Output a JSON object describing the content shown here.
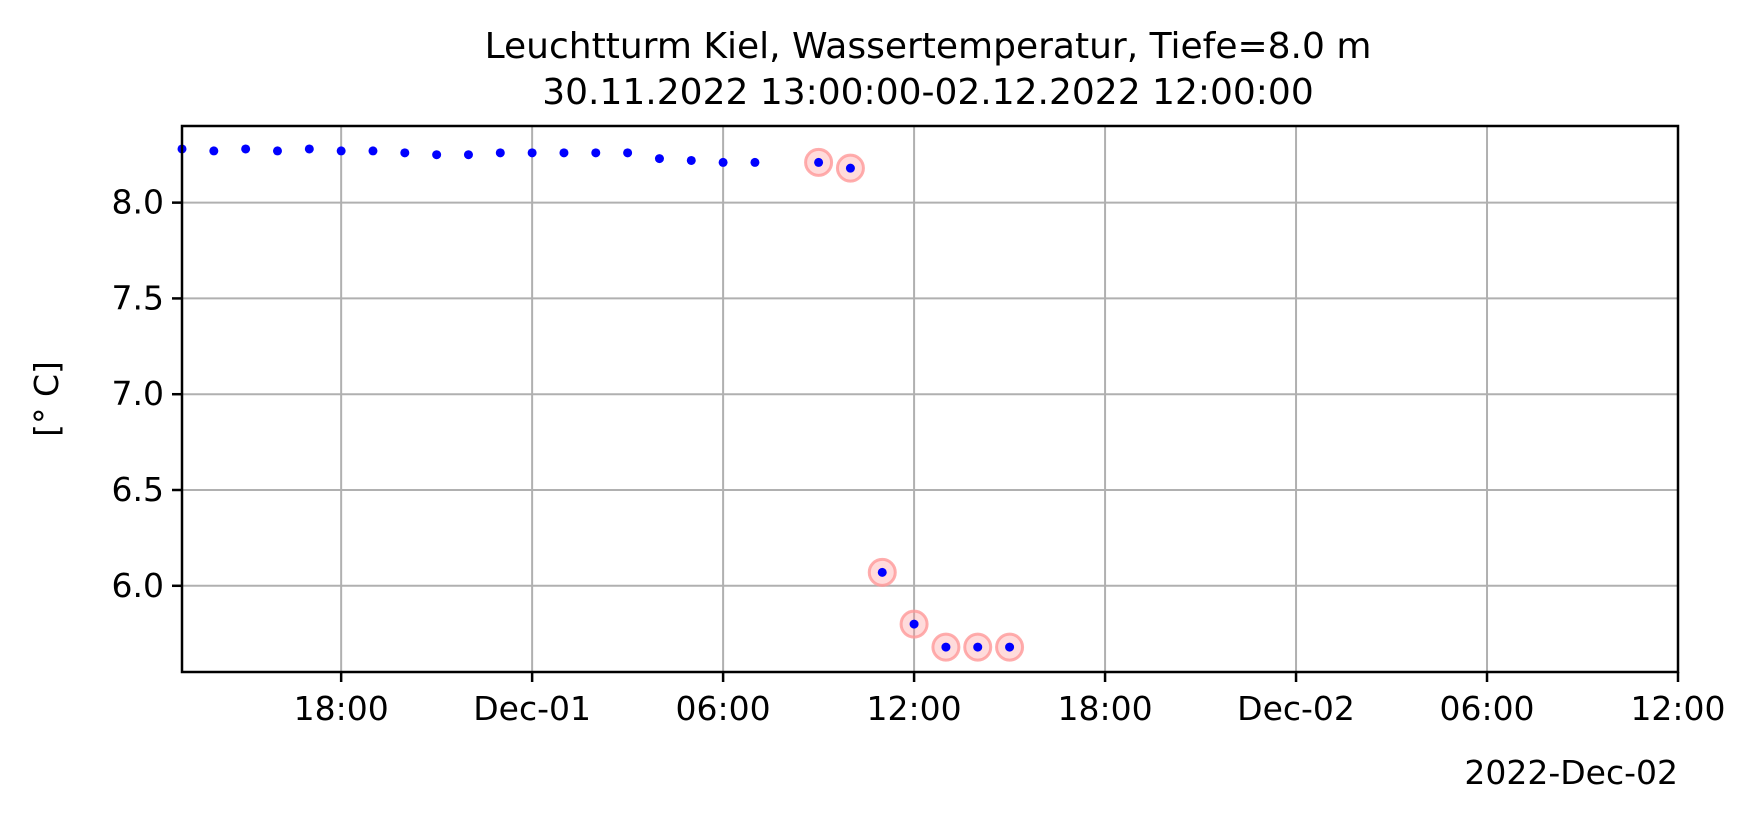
{
  "chart_data": {
    "type": "scatter",
    "title": "Leuchtturm Kiel, Wassertemperatur, Tiefe=8.0 m",
    "subtitle": "30.11.2022 13:00:00-02.12.2022 12:00:00",
    "xlabel": "",
    "ylabel": "[° C]",
    "x_offset_label": "2022-Dec-02",
    "xlim": [
      "2022-11-30T13:00",
      "2022-12-02T12:00"
    ],
    "ylim": [
      5.55,
      8.4
    ],
    "grid": true,
    "x_ticks": [
      {
        "x": "2022-11-30T18:00",
        "label": "18:00"
      },
      {
        "x": "2022-12-01T00:00",
        "label": "Dec-01"
      },
      {
        "x": "2022-12-01T06:00",
        "label": "06:00"
      },
      {
        "x": "2022-12-01T12:00",
        "label": "12:00"
      },
      {
        "x": "2022-12-01T18:00",
        "label": "18:00"
      },
      {
        "x": "2022-12-02T00:00",
        "label": "Dec-02"
      },
      {
        "x": "2022-12-02T06:00",
        "label": "06:00"
      },
      {
        "x": "2022-12-02T12:00",
        "label": "12:00"
      }
    ],
    "y_ticks": [
      {
        "y": 6.0,
        "label": "6.0"
      },
      {
        "y": 6.5,
        "label": "6.5"
      },
      {
        "y": 7.0,
        "label": "7.0"
      },
      {
        "y": 7.5,
        "label": "7.5"
      },
      {
        "y": 8.0,
        "label": "8.0"
      }
    ],
    "series": [
      {
        "point_color": "#0000ff",
        "flag_color": "#ff9999",
        "points": [
          {
            "x": "2022-11-30T13:00",
            "y": 8.28,
            "flagged": false
          },
          {
            "x": "2022-11-30T14:00",
            "y": 8.27,
            "flagged": false
          },
          {
            "x": "2022-11-30T15:00",
            "y": 8.28,
            "flagged": false
          },
          {
            "x": "2022-11-30T16:00",
            "y": 8.27,
            "flagged": false
          },
          {
            "x": "2022-11-30T17:00",
            "y": 8.28,
            "flagged": false
          },
          {
            "x": "2022-11-30T18:00",
            "y": 8.27,
            "flagged": false
          },
          {
            "x": "2022-11-30T19:00",
            "y": 8.27,
            "flagged": false
          },
          {
            "x": "2022-11-30T20:00",
            "y": 8.26,
            "flagged": false
          },
          {
            "x": "2022-11-30T21:00",
            "y": 8.25,
            "flagged": false
          },
          {
            "x": "2022-11-30T22:00",
            "y": 8.25,
            "flagged": false
          },
          {
            "x": "2022-11-30T23:00",
            "y": 8.26,
            "flagged": false
          },
          {
            "x": "2022-12-01T00:00",
            "y": 8.26,
            "flagged": false
          },
          {
            "x": "2022-12-01T01:00",
            "y": 8.26,
            "flagged": false
          },
          {
            "x": "2022-12-01T02:00",
            "y": 8.26,
            "flagged": false
          },
          {
            "x": "2022-12-01T03:00",
            "y": 8.26,
            "flagged": false
          },
          {
            "x": "2022-12-01T04:00",
            "y": 8.23,
            "flagged": false
          },
          {
            "x": "2022-12-01T05:00",
            "y": 8.22,
            "flagged": false
          },
          {
            "x": "2022-12-01T06:00",
            "y": 8.21,
            "flagged": false
          },
          {
            "x": "2022-12-01T07:00",
            "y": 8.21,
            "flagged": false
          },
          {
            "x": "2022-12-01T09:00",
            "y": 8.21,
            "flagged": true
          },
          {
            "x": "2022-12-01T10:00",
            "y": 8.18,
            "flagged": true
          },
          {
            "x": "2022-12-01T11:00",
            "y": 6.07,
            "flagged": true
          },
          {
            "x": "2022-12-01T12:00",
            "y": 5.8,
            "flagged": true
          },
          {
            "x": "2022-12-01T13:00",
            "y": 5.68,
            "flagged": true
          },
          {
            "x": "2022-12-01T14:00",
            "y": 5.68,
            "flagged": true
          },
          {
            "x": "2022-12-01T15:00",
            "y": 5.68,
            "flagged": true
          }
        ]
      }
    ]
  }
}
